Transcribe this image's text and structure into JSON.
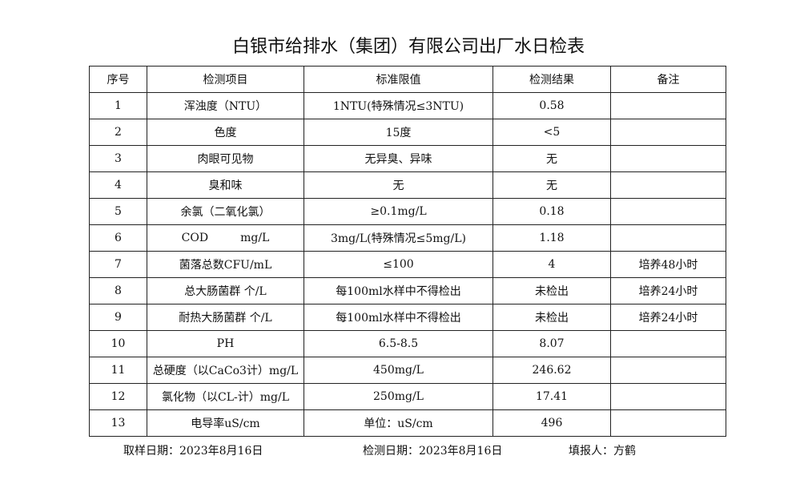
{
  "title": "白银市给排水（集团）有限公司出厂水日检表",
  "headers": [
    "序号",
    "检测项目",
    "标准限值",
    "检测结果",
    "备注"
  ],
  "rows": [
    [
      "1",
      "浑浊度（NTU）",
      "1NTU(特殊情况≤3NTU)",
      "0.58",
      ""
    ],
    [
      "2",
      "色度",
      "15度",
      "<5",
      ""
    ],
    [
      "3",
      "肉眼可见物",
      "无异臭、异味",
      "无",
      ""
    ],
    [
      "4",
      "臭和味",
      "无",
      "无",
      ""
    ],
    [
      "5",
      "余氯（二氧化氯）",
      "≥0.1mg/L",
      "0.18",
      ""
    ],
    [
      "6",
      "COD         mg/L",
      "3mg/L(特殊情况≤5mg/L)",
      "1.18",
      ""
    ],
    [
      "7",
      "菌落总数CFU/mL",
      "≤100",
      "4",
      "培养48小时"
    ],
    [
      "8",
      "总大肠菌群 个/L",
      "每100ml水样中不得检出",
      "未检出",
      "培养24小时"
    ],
    [
      "9",
      "耐热大肠菌群 个/L",
      "每100ml水样中不得检出",
      "未检出",
      "培养24小时"
    ],
    [
      "10",
      "PH",
      "6.5-8.5",
      "8.07",
      ""
    ],
    [
      "11",
      "总硬度（以CaCo3计）mg/L",
      "450mg/L",
      "246.62",
      ""
    ],
    [
      "12",
      "氯化物（以CL-计）mg/L",
      "250mg/L",
      "17.41",
      ""
    ],
    [
      "13",
      "电导率uS/cm",
      "单位：uS/cm",
      "496",
      ""
    ]
  ],
  "footer": {
    "sampling_date": "取样日期：2023年8月16日",
    "test_date": "检测日期：2023年8月16日",
    "reporter": "填报人：方鹤"
  }
}
